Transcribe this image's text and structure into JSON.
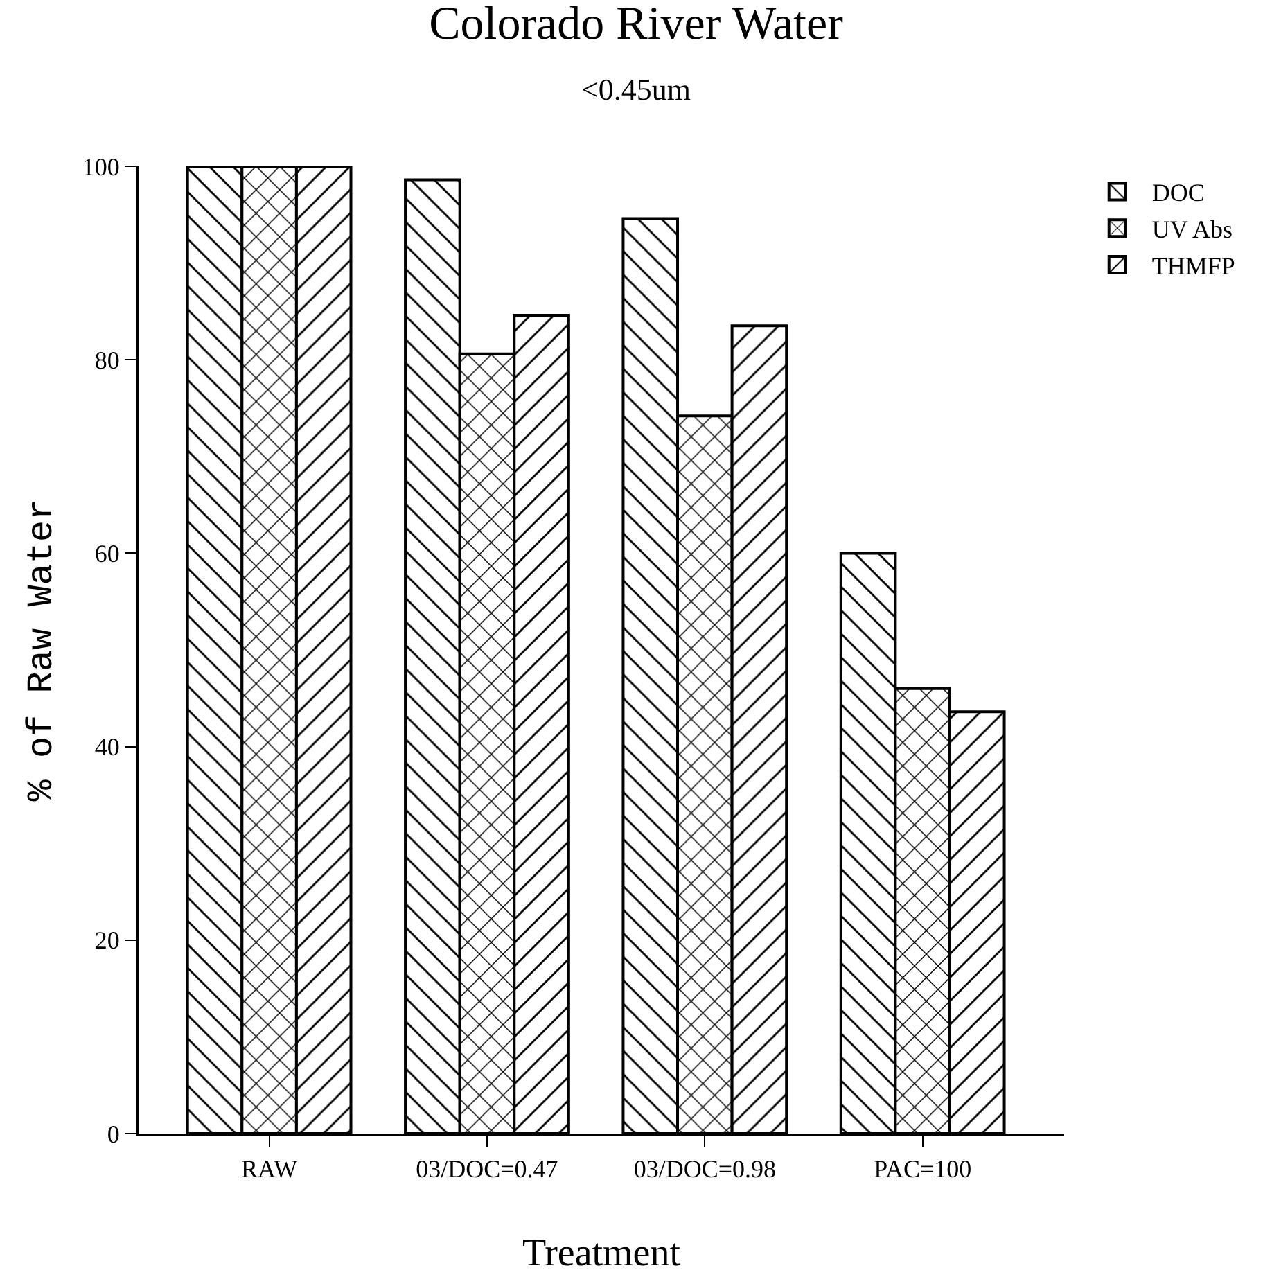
{
  "chart_data": {
    "type": "bar",
    "title": "Colorado River Water",
    "subtitle": "<0.45um",
    "xlabel": "Treatment",
    "ylabel": "% of Raw Water",
    "categories": [
      "RAW",
      "03/DOC=0.47",
      "03/DOC=0.98",
      "PAC=100"
    ],
    "series": [
      {
        "name": "DOC",
        "color": "#000000",
        "values": [
          100,
          98.6,
          94.6,
          60
        ]
      },
      {
        "name": "UV Abs",
        "color": "#000000",
        "values": [
          100,
          80.6,
          74.2,
          46
        ]
      },
      {
        "name": "THMFP",
        "color": "#000000",
        "values": [
          100,
          84.6,
          83.5,
          43.6
        ]
      }
    ],
    "ylim": [
      0,
      100
    ],
    "yticks": [
      0,
      20,
      40,
      60,
      80,
      100
    ],
    "grid": false,
    "legend": "top right"
  }
}
